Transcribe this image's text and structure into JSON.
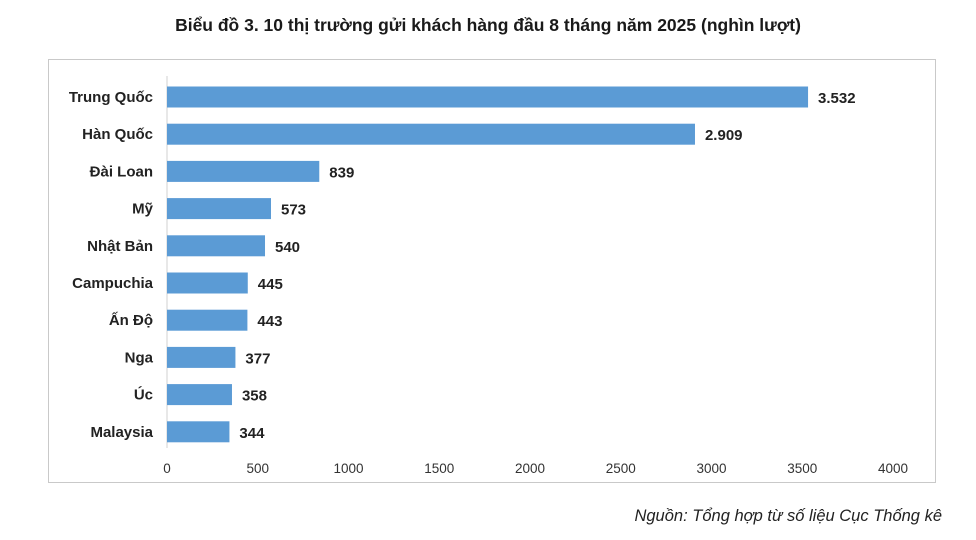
{
  "title": "Biểu đồ 3. 10 thị trường gửi khách hàng đầu 8 tháng năm 2025 (nghìn lượt)",
  "source": "Nguồn: Tổng hợp từ số liệu Cục Thống kê",
  "chart_data": {
    "type": "bar",
    "orientation": "horizontal",
    "categories": [
      "Trung Quốc",
      "Hàn Quốc",
      "Đài Loan",
      "Mỹ",
      "Nhật Bản",
      "Campuchia",
      "Ấn Độ",
      "Nga",
      "Úc",
      "Malaysia"
    ],
    "values": [
      3532,
      2909,
      839,
      573,
      540,
      445,
      443,
      377,
      358,
      344
    ],
    "value_labels": [
      "3.532",
      "2.909",
      "839",
      "573",
      "540",
      "445",
      "443",
      "377",
      "358",
      "344"
    ],
    "xlim": [
      0,
      4000
    ],
    "xticks": [
      0,
      500,
      1000,
      1500,
      2000,
      2500,
      3000,
      3500,
      4000
    ],
    "xlabel": "",
    "ylabel": "",
    "grid": false,
    "bar_color": "#5b9bd5"
  }
}
